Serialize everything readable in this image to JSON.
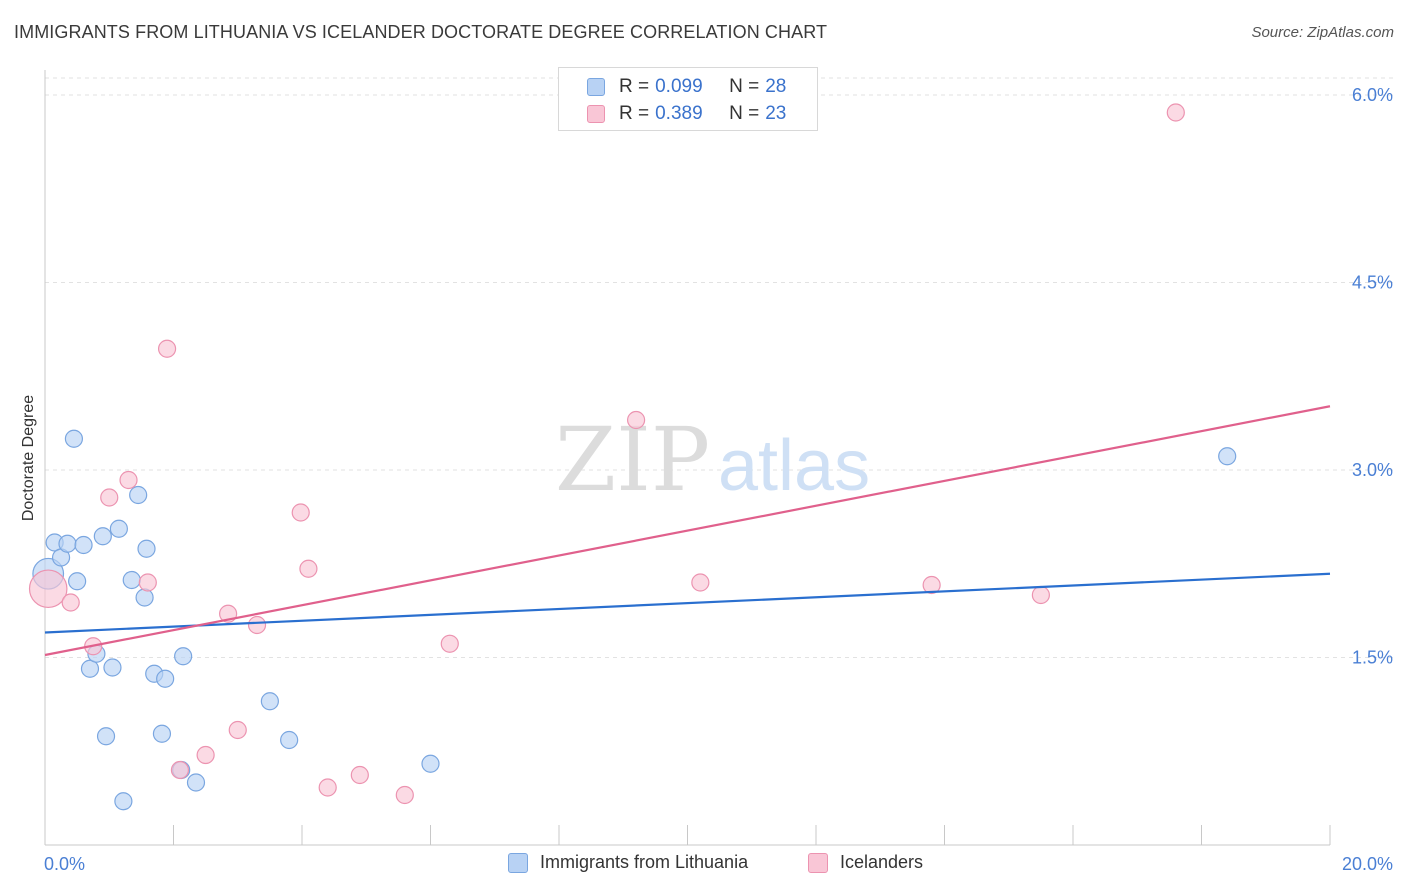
{
  "header": {
    "title": "IMMIGRANTS FROM LITHUANIA VS ICELANDER DOCTORATE DEGREE CORRELATION CHART",
    "source": "Source: ZipAtlas.com"
  },
  "watermark": {
    "zip": "ZIP",
    "atlas": "atlas"
  },
  "legend": {
    "r_label": "R =",
    "n_label": "N =",
    "rows": [
      {
        "r": "0.099",
        "n": "28",
        "fill": "#b8d2f4",
        "stroke": "#7aa6e0"
      },
      {
        "r": "0.389",
        "n": "23",
        "fill": "#f9c6d6",
        "stroke": "#ec93b0"
      }
    ]
  },
  "bottom_legend": [
    {
      "label": "Immigrants from Lithuania",
      "fill": "#b8d2f4",
      "stroke": "#7aa6e0"
    },
    {
      "label": "Icelanders",
      "fill": "#f9c6d6",
      "stroke": "#ec93b0"
    }
  ],
  "chart_data": {
    "type": "scatter",
    "title": "IMMIGRANTS FROM LITHUANIA VS ICELANDER DOCTORATE DEGREE CORRELATION CHART",
    "ylabel": "Doctorate Degree",
    "xlabel": "",
    "xlim": [
      0,
      20
    ],
    "ylim": [
      0,
      6.2
    ],
    "x_tick_labels": [
      "0.0%",
      "20.0%"
    ],
    "y_ticks": [
      1.5,
      3.0,
      4.5,
      6.0
    ],
    "y_tick_labels": [
      "1.5%",
      "3.0%",
      "4.5%",
      "6.0%"
    ],
    "grid": true,
    "series": [
      {
        "name": "Immigrants from Lithuania",
        "color": "#7aa6e0",
        "fill": "#b8d2f4",
        "line_color": "#2a6fcf",
        "trend": [
          [
            0,
            1.7
          ],
          [
            20,
            2.17
          ]
        ],
        "points": [
          [
            0.05,
            2.17,
            1.8
          ],
          [
            0.15,
            2.42,
            1
          ],
          [
            0.25,
            2.3,
            1
          ],
          [
            0.35,
            2.41,
            1
          ],
          [
            0.45,
            3.25,
            1
          ],
          [
            0.5,
            2.11,
            1
          ],
          [
            0.6,
            2.4,
            1
          ],
          [
            0.7,
            1.41,
            1
          ],
          [
            0.8,
            1.53,
            1
          ],
          [
            0.9,
            2.47,
            1
          ],
          [
            0.95,
            0.87,
            1
          ],
          [
            1.05,
            1.42,
            1
          ],
          [
            1.15,
            2.53,
            1
          ],
          [
            1.22,
            0.35,
            1
          ],
          [
            1.35,
            2.12,
            1
          ],
          [
            1.45,
            2.8,
            1
          ],
          [
            1.58,
            2.37,
            1
          ],
          [
            1.55,
            1.98,
            1
          ],
          [
            1.7,
            1.37,
            1
          ],
          [
            1.82,
            0.89,
            1
          ],
          [
            1.87,
            1.33,
            1
          ],
          [
            2.15,
            1.51,
            1
          ],
          [
            2.12,
            0.6,
            1
          ],
          [
            2.35,
            0.5,
            1
          ],
          [
            3.5,
            1.15,
            1
          ],
          [
            3.8,
            0.84,
            1
          ],
          [
            6.0,
            0.65,
            1
          ],
          [
            18.4,
            3.11,
            1
          ]
        ]
      },
      {
        "name": "Icelanders",
        "color": "#ec93b0",
        "fill": "#f9c6d6",
        "line_color": "#e0608c",
        "trend": [
          [
            0,
            1.52
          ],
          [
            20,
            3.51
          ]
        ],
        "points": [
          [
            0.05,
            2.05,
            2.2
          ],
          [
            0.4,
            1.94,
            1
          ],
          [
            0.75,
            1.59,
            1
          ],
          [
            1.0,
            2.78,
            1
          ],
          [
            1.3,
            2.92,
            1
          ],
          [
            1.6,
            2.1,
            1
          ],
          [
            1.9,
            3.97,
            1
          ],
          [
            2.1,
            0.6,
            1
          ],
          [
            2.5,
            0.72,
            1
          ],
          [
            2.85,
            1.85,
            1
          ],
          [
            3.0,
            0.92,
            1
          ],
          [
            3.3,
            1.76,
            1
          ],
          [
            3.98,
            2.66,
            1
          ],
          [
            4.1,
            2.21,
            1
          ],
          [
            4.4,
            0.46,
            1
          ],
          [
            4.9,
            0.56,
            1
          ],
          [
            5.6,
            0.4,
            1
          ],
          [
            6.3,
            1.61,
            1
          ],
          [
            9.2,
            3.4,
            1
          ],
          [
            10.2,
            2.1,
            1
          ],
          [
            13.8,
            2.08,
            1
          ],
          [
            15.5,
            2.0,
            1
          ],
          [
            17.6,
            5.86,
            1
          ]
        ]
      }
    ]
  }
}
